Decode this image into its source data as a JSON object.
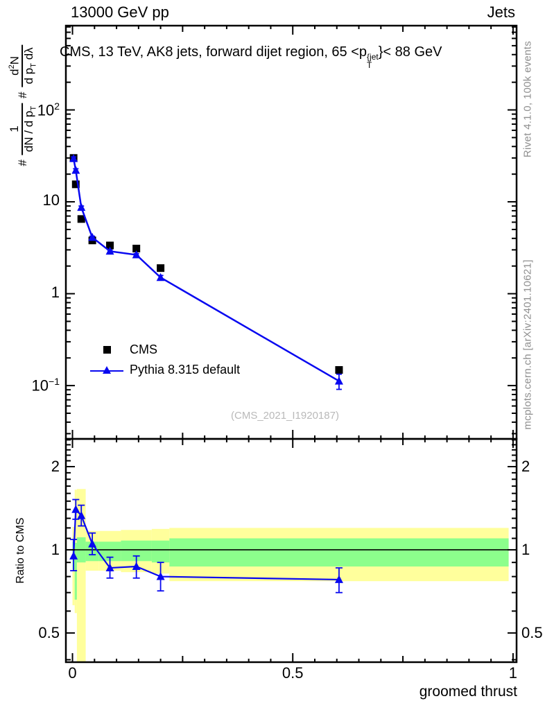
{
  "header": {
    "left": "13000 GeV pp",
    "right": "Jets"
  },
  "title": {
    "prefix": "CMS, 13 TeV, AK8 jets, forward dijet region, 65 <",
    "p": "p",
    "sup": "{jet",
    "sub": "T",
    "suffix": "}< 88 GeV"
  },
  "ylabel": {
    "hash1": "#",
    "f1_num": "1",
    "f1_den_main": "dN / d p",
    "f1_den_sub": "T",
    "hash2": "#",
    "f2_num_main": "d",
    "f2_num_sup": "2",
    "f2_num_tail": "N",
    "f2_den_main": "d p",
    "f2_den_sub": "T",
    "f2_den_tail": " dλ"
  },
  "xlabel": "groomed thrust",
  "ratio_ylabel": "Ratio to CMS",
  "watermark": "(CMS_2021_I1920187)",
  "sidebar_right": {
    "top": "Rivet 4.1.0,  100k events",
    "bottom": "mcplots.cern.ch [arXiv:2401.10621]"
  },
  "legend": [
    {
      "label": "CMS",
      "marker": "square",
      "color": "#000000"
    },
    {
      "label": "Pythia 8.315 default",
      "marker": "triangle-line",
      "color": "#0808f0"
    }
  ],
  "colors": {
    "blue": "#0808f0",
    "black": "#000000",
    "band_yellow": "#ffff9c",
    "band_green": "#8cff8c",
    "gray_text": "#8f8f8f",
    "watermark": "#b9b9b9"
  },
  "chart_data": {
    "type": "scatter",
    "title": "CMS, 13 TeV, AK8 jets, forward dijet region, 65 < pT^{jet} < 88 GeV",
    "xlabel": "groomed thrust",
    "ylabel": "# 1/(dN/dpT)  # d^2N/(dpT dlambda)",
    "legend_position": "middle-left",
    "grid": false,
    "x": [
      0.0025,
      0.0075,
      0.02,
      0.045,
      0.085,
      0.145,
      0.2,
      0.605
    ],
    "bin_edges": [
      0,
      0.005,
      0.01,
      0.03,
      0.06,
      0.11,
      0.18,
      0.22,
      0.99
    ],
    "main_panel": {
      "yscale": "log",
      "xlim": [
        -0.015,
        1.008
      ],
      "ylim": [
        0.0263,
        826
      ],
      "series": [
        {
          "name": "CMS",
          "marker": "square",
          "color": "#000000",
          "values": [
            30,
            15.5,
            6.5,
            3.8,
            3.35,
            3.1,
            1.9,
            0.148
          ],
          "err": [
            1.5,
            0.8,
            0.3,
            0.15,
            0.12,
            0.12,
            0.08,
            0.008
          ]
        },
        {
          "name": "Pythia 8.315 default",
          "marker": "triangle",
          "color": "#0808f0",
          "line": true,
          "values": [
            29.5,
            22,
            8.7,
            4.1,
            2.9,
            2.65,
            1.5,
            0.112
          ],
          "err": [
            1.3,
            0.9,
            0.3,
            0.13,
            0.09,
            0.08,
            0.08,
            0.021
          ]
        }
      ],
      "yticks": [
        {
          "v": 100,
          "base": "10",
          "exp": "2"
        },
        {
          "v": 10,
          "base": "10",
          "exp": ""
        },
        {
          "v": 1,
          "base": "1",
          "exp": ""
        },
        {
          "v": 0.1,
          "base": "10",
          "exp": "−1"
        }
      ]
    },
    "ratio_panel": {
      "yscale": "log",
      "ylim": [
        0.392,
        2.52
      ],
      "ref_line": 1,
      "values": [
        0.95,
        1.4,
        1.33,
        1.05,
        0.86,
        0.87,
        0.8,
        0.78
      ],
      "err_lo": [
        0.11,
        0.11,
        0.11,
        0.09,
        0.07,
        0.08,
        0.09,
        0.08
      ],
      "err_hi": [
        0.14,
        0.12,
        0.12,
        0.1,
        0.08,
        0.08,
        0.1,
        0.08
      ],
      "bands": [
        {
          "x0": 0,
          "x1": 0.005,
          "green": [
            0.85,
            1.07
          ],
          "yellow": [
            0.63,
            1.21
          ]
        },
        {
          "x0": 0.005,
          "x1": 0.01,
          "green": [
            0.66,
            1.06
          ],
          "yellow": [
            0.59,
            1.65
          ]
        },
        {
          "x0": 0.01,
          "x1": 0.03,
          "green": [
            0.9,
            1.11
          ],
          "yellow": [
            0.28,
            1.66
          ]
        },
        {
          "x0": 0.03,
          "x1": 0.06,
          "green": [
            0.91,
            1.07
          ],
          "yellow": [
            0.84,
            1.17
          ]
        },
        {
          "x0": 0.06,
          "x1": 0.11,
          "green": [
            0.91,
            1.07
          ],
          "yellow": [
            0.84,
            1.17
          ]
        },
        {
          "x0": 0.11,
          "x1": 0.18,
          "green": [
            0.91,
            1.08
          ],
          "yellow": [
            0.83,
            1.18
          ]
        },
        {
          "x0": 0.18,
          "x1": 0.22,
          "green": [
            0.9,
            1.08
          ],
          "yellow": [
            0.82,
            1.19
          ]
        },
        {
          "x0": 0.22,
          "x1": 0.99,
          "green": [
            0.87,
            1.1
          ],
          "yellow": [
            0.77,
            1.2
          ]
        }
      ],
      "yticks": [
        {
          "v": 2,
          "label": "2"
        },
        {
          "v": 1,
          "label": "1"
        },
        {
          "v": 0.5,
          "label": "0.5"
        }
      ]
    },
    "xticks": [
      {
        "v": 0,
        "label": "0"
      },
      {
        "v": 0.5,
        "label": "0.5"
      },
      {
        "v": 1,
        "label": "1"
      }
    ]
  }
}
